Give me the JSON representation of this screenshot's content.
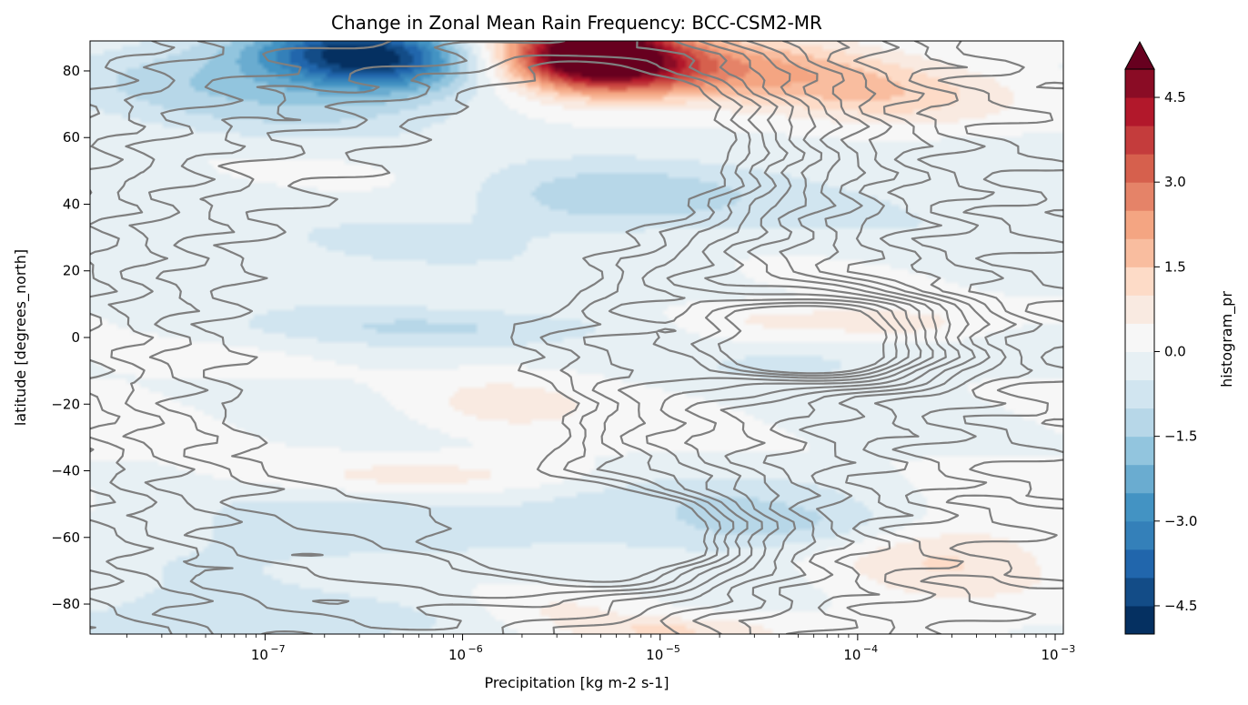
{
  "chart_data": {
    "type": "heatmap",
    "title": "Change in Zonal Mean Rain Frequency: BCC-CSM2-MR",
    "xlabel": "Precipitation [kg m-2 s-1]",
    "ylabel": "latitude [degrees_north]",
    "x_scale": "log",
    "xlim": [
      1.3e-08,
      0.0011
    ],
    "ylim": [
      -89,
      89
    ],
    "x_ticks": [
      {
        "value": 1e-07,
        "base": "10",
        "exp": "−7"
      },
      {
        "value": 1e-06,
        "base": "10",
        "exp": "−6"
      },
      {
        "value": 1e-05,
        "base": "10",
        "exp": "−5"
      },
      {
        "value": 0.0001,
        "base": "10",
        "exp": "−4"
      },
      {
        "value": 0.001,
        "base": "10",
        "exp": "−3"
      }
    ],
    "y_ticks": [
      {
        "value": 80,
        "label": "80"
      },
      {
        "value": 60,
        "label": "60"
      },
      {
        "value": 40,
        "label": "40"
      },
      {
        "value": 20,
        "label": "20"
      },
      {
        "value": 0,
        "label": "0"
      },
      {
        "value": -20,
        "label": "−20"
      },
      {
        "value": -40,
        "label": "−40"
      },
      {
        "value": -60,
        "label": "−60"
      },
      {
        "value": -80,
        "label": "−80"
      }
    ],
    "colorbar": {
      "label": "histogram_pr",
      "colormap": "RdBu_r",
      "range": [
        -5,
        5
      ],
      "extend": "max",
      "levels": [
        -5.0,
        -4.5,
        -4.0,
        -3.5,
        -3.0,
        -2.5,
        -2.0,
        -1.5,
        -1.0,
        -0.5,
        0.0,
        0.5,
        1.0,
        1.5,
        2.0,
        2.5,
        3.0,
        3.5,
        4.0,
        4.5,
        5.0
      ],
      "colors": [
        "#053061",
        "#134c87",
        "#2166ac",
        "#3480b9",
        "#4393c3",
        "#6aacd0",
        "#92c5de",
        "#b7d7e8",
        "#d1e5f0",
        "#e7f0f4",
        "#f7f7f7",
        "#f9eae1",
        "#fddbc7",
        "#f9bd9f",
        "#f4a582",
        "#e58368",
        "#d6604d",
        "#c43c3c",
        "#b2182b",
        "#8a0c25"
      ],
      "extend_color": "#67001f",
      "tick_values": [
        -4.5,
        -3.0,
        -1.5,
        0.0,
        1.5,
        3.0,
        4.5
      ],
      "tick_labels": [
        "−4.5",
        "−3.0",
        "−1.5",
        "0.0",
        "1.5",
        "3.0",
        "4.5"
      ]
    },
    "anomaly_blobs": [
      {
        "x": 2.5e-07,
        "y": 86,
        "sx": 0.35,
        "sy": 6,
        "v": -3.2
      },
      {
        "x": 4.5e-07,
        "y": 82,
        "sx": 0.3,
        "sy": 7,
        "v": -2.0
      },
      {
        "x": 2e-07,
        "y": 72,
        "sx": 0.6,
        "sy": 9,
        "v": -1.2
      },
      {
        "x": 4e-08,
        "y": 80,
        "sx": 0.5,
        "sy": 8,
        "v": -0.8
      },
      {
        "x": 4.5e-06,
        "y": 86,
        "sx": 0.3,
        "sy": 7,
        "v": 5.6
      },
      {
        "x": 6.5e-06,
        "y": 80,
        "sx": 0.35,
        "sy": 6,
        "v": 2.2
      },
      {
        "x": 3e-05,
        "y": 80,
        "sx": 0.45,
        "sy": 8,
        "v": 1.9
      },
      {
        "x": 0.00015,
        "y": 72,
        "sx": 0.4,
        "sy": 7,
        "v": 1.0
      },
      {
        "x": 5e-05,
        "y": 42,
        "sx": 0.9,
        "sy": 12,
        "v": -0.7
      },
      {
        "x": 5e-06,
        "y": 42,
        "sx": 0.45,
        "sy": 6,
        "v": -0.9
      },
      {
        "x": 1.5e-07,
        "y": 25,
        "sx": 0.7,
        "sy": 12,
        "v": -0.6
      },
      {
        "x": 1e-06,
        "y": 3,
        "sx": 1.0,
        "sy": 4,
        "v": -0.8
      },
      {
        "x": 5e-05,
        "y": 5,
        "sx": 0.4,
        "sy": 3,
        "v": 0.8
      },
      {
        "x": 0.0002,
        "y": 4,
        "sx": 0.3,
        "sy": 4,
        "v": 0.7
      },
      {
        "x": 4e-05,
        "y": -8,
        "sx": 0.4,
        "sy": 4,
        "v": -0.8
      },
      {
        "x": 1.5e-06,
        "y": -20,
        "sx": 0.3,
        "sy": 6,
        "v": 0.7
      },
      {
        "x": 6e-07,
        "y": -42,
        "sx": 0.7,
        "sy": 4,
        "v": 0.8
      },
      {
        "x": 3e-07,
        "y": -60,
        "sx": 0.9,
        "sy": 10,
        "v": -0.7
      },
      {
        "x": 8e-06,
        "y": -48,
        "sx": 0.7,
        "sy": 6,
        "v": -0.8
      },
      {
        "x": 4e-05,
        "y": -57,
        "sx": 0.5,
        "sy": 5,
        "v": -1.0
      },
      {
        "x": 0.00025,
        "y": -65,
        "sx": 0.4,
        "sy": 10,
        "v": 0.9
      },
      {
        "x": 3e-06,
        "y": -82,
        "sx": 0.3,
        "sy": 4,
        "v": 0.7
      },
      {
        "x": 1e-07,
        "y": -85,
        "sx": 1.0,
        "sy": 6,
        "v": -0.8
      },
      {
        "x": 1e-05,
        "y": -88,
        "sx": 0.4,
        "sy": 3,
        "v": 1.2
      }
    ],
    "contour_centers": [
      {
        "x": 3e-07,
        "y": 0,
        "sx": 1.5,
        "sy": 95,
        "w": 1.0
      },
      {
        "x": 8e-06,
        "y": 60,
        "sx": 0.6,
        "sy": 22,
        "w": 0.7
      },
      {
        "x": 7e-05,
        "y": 5,
        "sx": 0.42,
        "sy": 6,
        "w": 0.8
      },
      {
        "x": 7e-05,
        "y": -7,
        "sx": 0.42,
        "sy": 5,
        "w": 0.75
      },
      {
        "x": 6e-06,
        "y": -60,
        "sx": 0.45,
        "sy": 10,
        "w": 0.85
      },
      {
        "x": 1e-06,
        "y": 17,
        "sx": 0.35,
        "sy": 6,
        "w": 0.5
      },
      {
        "x": 8e-07,
        "y": -25,
        "sx": 0.4,
        "sy": 9,
        "w": 0.55
      }
    ],
    "contour_levels": [
      0.08,
      0.14,
      0.2,
      0.27,
      0.34,
      0.42,
      0.5,
      0.58,
      0.66,
      0.74,
      0.82,
      0.9
    ]
  }
}
